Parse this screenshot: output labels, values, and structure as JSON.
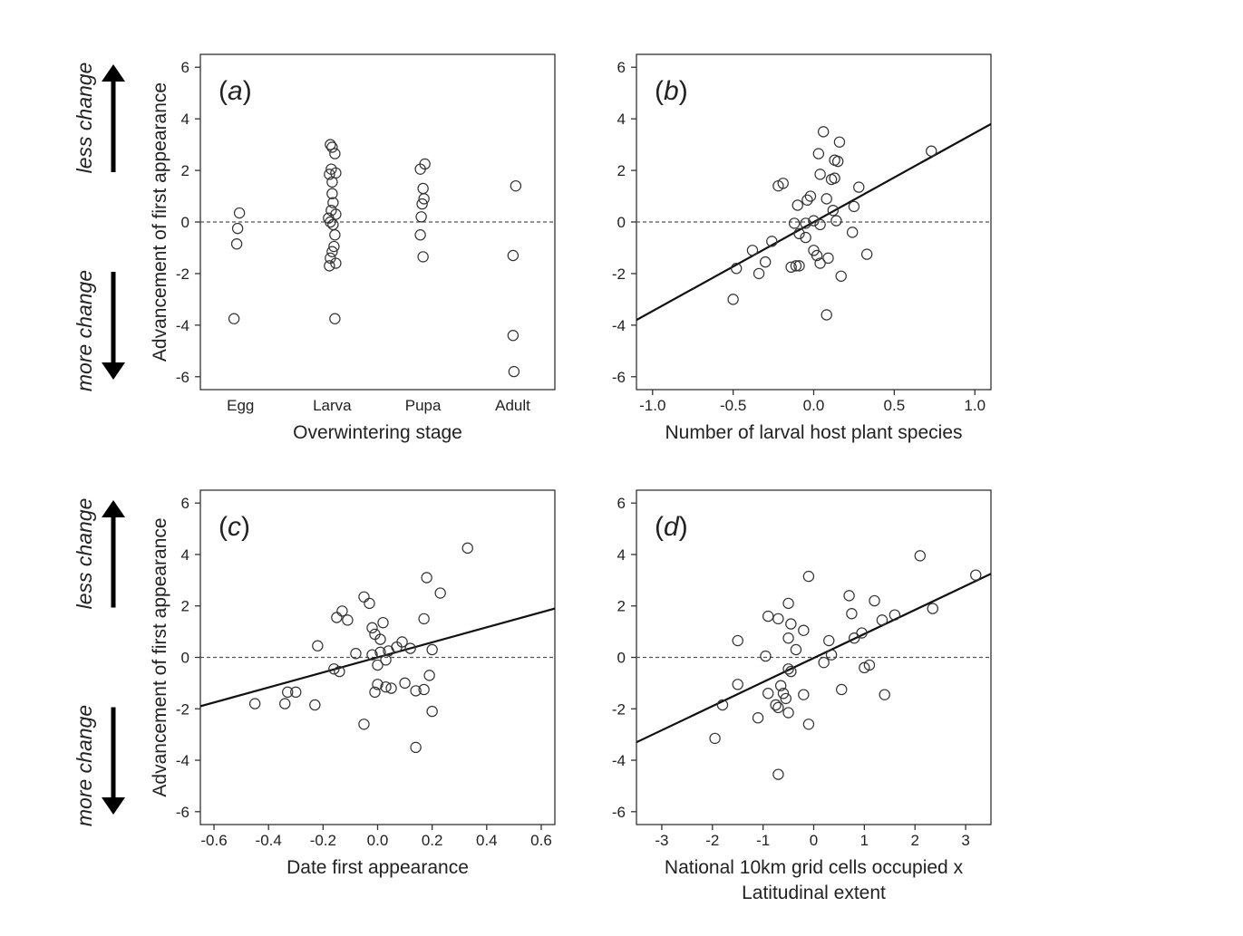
{
  "side_labels": {
    "up": "less change",
    "down": "more change",
    "arrow_color": "#000000"
  },
  "chart_data": [
    {
      "type": "scatter",
      "panel_letter": "a",
      "xlabel": "Overwintering stage",
      "ylabel": "Advancement of first appearance",
      "categorical": true,
      "categories": [
        "Egg",
        "Larva",
        "Pupa",
        "Adult"
      ],
      "ylim": [
        -6.5,
        6.5
      ],
      "yticks": [
        -6,
        -4,
        -2,
        0,
        2,
        4,
        6
      ],
      "reference_line": 0,
      "points": [
        {
          "x": -0.02,
          "y": 0.35
        },
        {
          "x": -0.04,
          "y": -0.25
        },
        {
          "x": -0.05,
          "y": -0.85
        },
        {
          "x": -0.08,
          "y": -3.75
        },
        {
          "x": 0.98,
          "y": 3.0
        },
        {
          "x": 1.0,
          "y": 2.9
        },
        {
          "x": 1.03,
          "y": 2.65
        },
        {
          "x": 0.99,
          "y": 2.05
        },
        {
          "x": 0.97,
          "y": 1.85
        },
        {
          "x": 1.04,
          "y": 1.9
        },
        {
          "x": 1.0,
          "y": 1.55
        },
        {
          "x": 1.0,
          "y": 1.1
        },
        {
          "x": 1.01,
          "y": 0.75
        },
        {
          "x": 0.99,
          "y": 0.45
        },
        {
          "x": 1.04,
          "y": 0.3
        },
        {
          "x": 0.96,
          "y": 0.15
        },
        {
          "x": 0.98,
          "y": 0.0
        },
        {
          "x": 1.01,
          "y": -0.1
        },
        {
          "x": 1.03,
          "y": -0.5
        },
        {
          "x": 1.02,
          "y": -0.95
        },
        {
          "x": 1.0,
          "y": -1.15
        },
        {
          "x": 0.98,
          "y": -1.4
        },
        {
          "x": 0.97,
          "y": -1.7
        },
        {
          "x": 1.04,
          "y": -1.6
        },
        {
          "x": 1.03,
          "y": -3.75
        },
        {
          "x": 1.97,
          "y": 2.05
        },
        {
          "x": 2.02,
          "y": 2.25
        },
        {
          "x": 2.0,
          "y": 1.3
        },
        {
          "x": 2.01,
          "y": 0.9
        },
        {
          "x": 1.99,
          "y": 0.7
        },
        {
          "x": 1.98,
          "y": 0.2
        },
        {
          "x": 1.97,
          "y": -0.5
        },
        {
          "x": 2.0,
          "y": -1.35
        },
        {
          "x": 3.02,
          "y": 1.4
        },
        {
          "x": 2.99,
          "y": -1.3
        },
        {
          "x": 2.99,
          "y": -4.4
        },
        {
          "x": 3.0,
          "y": -5.8
        }
      ]
    },
    {
      "type": "scatter",
      "panel_letter": "b",
      "xlabel": "Number of larval host plant species",
      "ylabel": "",
      "xlim": [
        -1.1,
        1.1
      ],
      "xticks": [
        -1.0,
        -0.5,
        0.0,
        0.5,
        1.0
      ],
      "xtick_labels": [
        "-1.0",
        "-0.5",
        "0.0",
        "0.5",
        "1.0"
      ],
      "ylim": [
        -6.5,
        6.5
      ],
      "yticks": [
        -6,
        -4,
        -2,
        0,
        2,
        4,
        6
      ],
      "reference_line": 0,
      "fit_line": {
        "x": [
          -1.1,
          1.1
        ],
        "y": [
          -3.8,
          3.8
        ]
      },
      "points": [
        {
          "x": 0.73,
          "y": 2.75
        },
        {
          "x": 0.06,
          "y": 3.5
        },
        {
          "x": 0.16,
          "y": 3.1
        },
        {
          "x": 0.03,
          "y": 2.65
        },
        {
          "x": 0.13,
          "y": 2.4
        },
        {
          "x": 0.15,
          "y": 2.35
        },
        {
          "x": 0.04,
          "y": 1.85
        },
        {
          "x": 0.13,
          "y": 1.7
        },
        {
          "x": 0.11,
          "y": 1.65
        },
        {
          "x": -0.22,
          "y": 1.4
        },
        {
          "x": -0.19,
          "y": 1.5
        },
        {
          "x": 0.28,
          "y": 1.35
        },
        {
          "x": -0.02,
          "y": 1.0
        },
        {
          "x": -0.04,
          "y": 0.85
        },
        {
          "x": 0.08,
          "y": 0.9
        },
        {
          "x": -0.1,
          "y": 0.65
        },
        {
          "x": 0.25,
          "y": 0.6
        },
        {
          "x": 0.12,
          "y": 0.45
        },
        {
          "x": -0.12,
          "y": -0.05
        },
        {
          "x": -0.05,
          "y": -0.05
        },
        {
          "x": 0.0,
          "y": 0.05
        },
        {
          "x": 0.04,
          "y": -0.1
        },
        {
          "x": 0.14,
          "y": 0.05
        },
        {
          "x": -0.09,
          "y": -0.45
        },
        {
          "x": -0.05,
          "y": -0.6
        },
        {
          "x": 0.24,
          "y": -0.4
        },
        {
          "x": -0.26,
          "y": -0.75
        },
        {
          "x": -0.38,
          "y": -1.1
        },
        {
          "x": 0.0,
          "y": -1.1
        },
        {
          "x": 0.02,
          "y": -1.3
        },
        {
          "x": 0.09,
          "y": -1.4
        },
        {
          "x": 0.33,
          "y": -1.25
        },
        {
          "x": -0.3,
          "y": -1.55
        },
        {
          "x": 0.04,
          "y": -1.6
        },
        {
          "x": -0.11,
          "y": -1.7
        },
        {
          "x": -0.09,
          "y": -1.7
        },
        {
          "x": -0.14,
          "y": -1.75
        },
        {
          "x": -0.48,
          "y": -1.8
        },
        {
          "x": -0.34,
          "y": -2.0
        },
        {
          "x": 0.17,
          "y": -2.1
        },
        {
          "x": -0.5,
          "y": -3.0
        },
        {
          "x": 0.08,
          "y": -3.6
        }
      ]
    },
    {
      "type": "scatter",
      "panel_letter": "c",
      "xlabel": "Date first appearance",
      "ylabel": "Advancement of first appearance",
      "xlim": [
        -0.65,
        0.65
      ],
      "xticks": [
        -0.6,
        -0.4,
        -0.2,
        0.0,
        0.2,
        0.4,
        0.6
      ],
      "xtick_labels": [
        "-0.6",
        "-0.4",
        "-0.2",
        "0.0",
        "0.2",
        "0.4",
        "0.6"
      ],
      "ylim": [
        -6.5,
        6.5
      ],
      "yticks": [
        -6,
        -4,
        -2,
        0,
        2,
        4,
        6
      ],
      "reference_line": 0,
      "fit_line": {
        "x": [
          -0.65,
          0.65
        ],
        "y": [
          -1.9,
          1.9
        ]
      },
      "points": [
        {
          "x": 0.33,
          "y": 4.25
        },
        {
          "x": 0.18,
          "y": 3.1
        },
        {
          "x": 0.23,
          "y": 2.5
        },
        {
          "x": -0.05,
          "y": 2.35
        },
        {
          "x": -0.03,
          "y": 2.1
        },
        {
          "x": -0.13,
          "y": 1.8
        },
        {
          "x": -0.15,
          "y": 1.55
        },
        {
          "x": -0.11,
          "y": 1.45
        },
        {
          "x": 0.17,
          "y": 1.5
        },
        {
          "x": 0.02,
          "y": 1.35
        },
        {
          "x": -0.02,
          "y": 1.15
        },
        {
          "x": -0.01,
          "y": 0.9
        },
        {
          "x": 0.01,
          "y": 0.7
        },
        {
          "x": 0.09,
          "y": 0.6
        },
        {
          "x": -0.22,
          "y": 0.45
        },
        {
          "x": 0.07,
          "y": 0.4
        },
        {
          "x": 0.12,
          "y": 0.35
        },
        {
          "x": 0.2,
          "y": 0.3
        },
        {
          "x": 0.04,
          "y": 0.25
        },
        {
          "x": -0.08,
          "y": 0.15
        },
        {
          "x": 0.01,
          "y": 0.2
        },
        {
          "x": -0.02,
          "y": 0.1
        },
        {
          "x": 0.03,
          "y": -0.1
        },
        {
          "x": 0.0,
          "y": -0.3
        },
        {
          "x": -0.16,
          "y": -0.45
        },
        {
          "x": -0.14,
          "y": -0.55
        },
        {
          "x": 0.19,
          "y": -0.7
        },
        {
          "x": 0.0,
          "y": -1.05
        },
        {
          "x": 0.1,
          "y": -1.0
        },
        {
          "x": 0.03,
          "y": -1.15
        },
        {
          "x": 0.05,
          "y": -1.2
        },
        {
          "x": 0.14,
          "y": -1.3
        },
        {
          "x": 0.17,
          "y": -1.25
        },
        {
          "x": -0.01,
          "y": -1.35
        },
        {
          "x": -0.3,
          "y": -1.35
        },
        {
          "x": -0.33,
          "y": -1.35
        },
        {
          "x": -0.34,
          "y": -1.8
        },
        {
          "x": -0.45,
          "y": -1.8
        },
        {
          "x": -0.23,
          "y": -1.85
        },
        {
          "x": 0.2,
          "y": -2.1
        },
        {
          "x": -0.05,
          "y": -2.6
        },
        {
          "x": 0.14,
          "y": -3.5
        }
      ]
    },
    {
      "type": "scatter",
      "panel_letter": "d",
      "xlabel": "National 10km grid cells occupied x",
      "xlabel_line2": "Latitudinal extent",
      "ylabel": "",
      "xlim": [
        -3.5,
        3.5
      ],
      "xticks": [
        -3,
        -2,
        -1,
        0,
        1,
        2,
        3
      ],
      "xtick_labels": [
        "-3",
        "-2",
        "-1",
        "0",
        "1",
        "2",
        "3"
      ],
      "ylim": [
        -6.5,
        6.5
      ],
      "yticks": [
        -6,
        -4,
        -2,
        0,
        2,
        4,
        6
      ],
      "reference_line": 0,
      "fit_line": {
        "x": [
          -3.5,
          3.5
        ],
        "y": [
          -3.3,
          3.25
        ]
      },
      "points": [
        {
          "x": 2.1,
          "y": 3.95
        },
        {
          "x": 3.2,
          "y": 3.2
        },
        {
          "x": -0.1,
          "y": 3.15
        },
        {
          "x": 0.7,
          "y": 2.4
        },
        {
          "x": 1.2,
          "y": 2.2
        },
        {
          "x": -0.5,
          "y": 2.1
        },
        {
          "x": 2.35,
          "y": 1.9
        },
        {
          "x": 0.75,
          "y": 1.7
        },
        {
          "x": 1.6,
          "y": 1.65
        },
        {
          "x": -0.9,
          "y": 1.6
        },
        {
          "x": -0.7,
          "y": 1.5
        },
        {
          "x": 1.35,
          "y": 1.45
        },
        {
          "x": -0.45,
          "y": 1.3
        },
        {
          "x": -0.2,
          "y": 1.05
        },
        {
          "x": 0.95,
          "y": 0.95
        },
        {
          "x": 0.8,
          "y": 0.75
        },
        {
          "x": -0.5,
          "y": 0.75
        },
        {
          "x": 0.3,
          "y": 0.65
        },
        {
          "x": -1.5,
          "y": 0.65
        },
        {
          "x": -0.35,
          "y": 0.3
        },
        {
          "x": -0.95,
          "y": 0.05
        },
        {
          "x": 0.35,
          "y": 0.1
        },
        {
          "x": 0.2,
          "y": -0.2
        },
        {
          "x": 1.1,
          "y": -0.3
        },
        {
          "x": 1.0,
          "y": -0.4
        },
        {
          "x": -0.5,
          "y": -0.45
        },
        {
          "x": -0.45,
          "y": -0.55
        },
        {
          "x": -1.5,
          "y": -1.05
        },
        {
          "x": -0.65,
          "y": -1.1
        },
        {
          "x": 0.55,
          "y": -1.25
        },
        {
          "x": -0.9,
          "y": -1.4
        },
        {
          "x": -0.2,
          "y": -1.45
        },
        {
          "x": -0.6,
          "y": -1.4
        },
        {
          "x": 1.4,
          "y": -1.45
        },
        {
          "x": -0.55,
          "y": -1.6
        },
        {
          "x": -1.8,
          "y": -1.85
        },
        {
          "x": -0.7,
          "y": -1.95
        },
        {
          "x": -0.75,
          "y": -1.85
        },
        {
          "x": -0.5,
          "y": -2.15
        },
        {
          "x": -1.1,
          "y": -2.35
        },
        {
          "x": -0.1,
          "y": -2.6
        },
        {
          "x": -1.95,
          "y": -3.15
        },
        {
          "x": -0.7,
          "y": -4.55
        }
      ]
    }
  ]
}
